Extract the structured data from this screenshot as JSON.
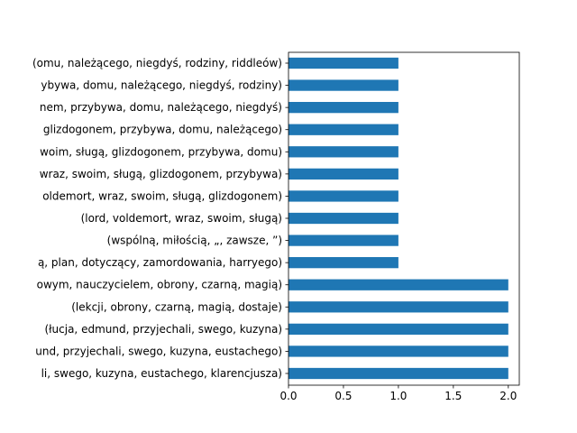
{
  "chart_data": {
    "type": "bar",
    "orientation": "horizontal",
    "title": "",
    "xlabel": "",
    "ylabel": "",
    "xlim": [
      0,
      2.1
    ],
    "x_ticks": [
      0.0,
      0.5,
      1.0,
      1.5,
      2.0
    ],
    "x_tick_labels": [
      "0.0",
      "0.5",
      "1.0",
      "1.5",
      "2.0"
    ],
    "grid": false,
    "legend": "none",
    "bar_color": "#1f77b4",
    "categories": [
      "(omu, należącego, niegdyś, rodziny, riddleów)",
      "ybywa, domu, należącego, niegdyś, rodziny)",
      "nem, przybywa, domu, należącego, niegdyś)",
      "glizdogonem, przybywa, domu, należącego)",
      "woim, sługą, glizdogonem, przybywa, domu)",
      "wraz, swoim, sługą, glizdogonem, przybywa)",
      "oldemort, wraz, swoim, sługą, glizdogonem)",
      "(lord, voldemort, wraz, swoim, sługą)",
      "(wspólną, miłością, „, zawsze, ”)",
      "ą, plan, dotyczący, zamordowania, harryego)",
      "owym, nauczycielem, obrony, czarną, magią)",
      "(lekcji, obrony, czarną, magią, dostaje)",
      "(łucja, edmund, przyjechali, swego, kuzyna)",
      "und, przyjechali, swego, kuzyna, eustachego)",
      "li, swego, kuzyna, eustachego, klarencjusza)"
    ],
    "values": [
      1,
      1,
      1,
      1,
      1,
      1,
      1,
      1,
      1,
      1,
      2,
      2,
      2,
      2,
      2
    ]
  }
}
